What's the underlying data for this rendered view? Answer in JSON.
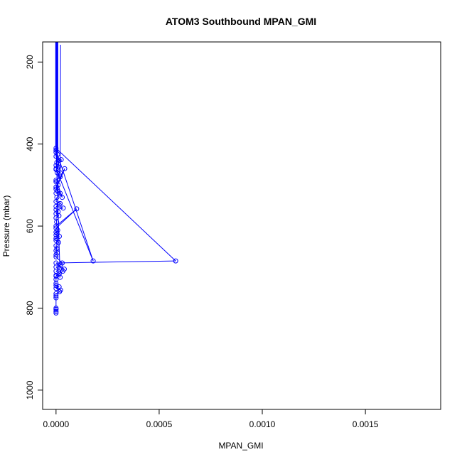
{
  "chart_data": {
    "type": "line",
    "title": "ATOM3 Southbound MPAN_GMI",
    "xlabel": "MPAN_GMI",
    "ylabel": "Pressure (mbar)",
    "xlim": [
      -6.49e-05,
      0.0018649
    ],
    "ylim": [
      1047,
      151
    ],
    "y_reversed": true,
    "x_ticks": [
      0.0,
      0.0005,
      0.001,
      0.0015
    ],
    "x_tick_labels": [
      "0.0000",
      "0.0005",
      "0.0010",
      "0.0015"
    ],
    "y_ticks": [
      200,
      400,
      600,
      800,
      1000
    ],
    "y_tick_labels": [
      "200",
      "400",
      "600",
      "800",
      "1000"
    ],
    "grid": false,
    "legend": "none",
    "series": [
      {
        "color": "#0000ff",
        "marker": "open-circle",
        "line": true,
        "x": [
          0.0,
          8e-06,
          0.0,
          1.5e-05,
          2.5e-05,
          4e-06,
          0.0,
          1.2e-05,
          0.0,
          2e-05,
          0.0,
          0.00018,
          0.0,
          6e-06,
          1.8e-05,
          2e-05,
          0.0,
          0.0,
          1e-05,
          3e-05,
          0.0,
          4.2e-05,
          0.0,
          8e-06,
          0.0,
          2e-05,
          4e-06,
          0.0,
          2e-05,
          1.5e-05,
          0.0,
          3.5e-05,
          0.0,
          1e-05,
          0.0,
          1.4e-05,
          0.0,
          3e-06,
          0.0,
          0.0001,
          0.0,
          8e-06,
          0.0,
          5e-06,
          0.0,
          1.6e-05,
          0.0,
          0.0,
          1.2e-05,
          0.0,
          4e-06,
          0.0,
          6e-06,
          0.0,
          0.0,
          3e-05,
          2.2e-05,
          0.0,
          1.7e-05,
          0.0,
          1.7e-05,
          0.0,
          2e-05,
          0.0,
          0.00058,
          0.0,
          4e-05,
          3.3e-05,
          0.0,
          0.0,
          0.0,
          0.0,
          1.5e-05,
          0.0,
          2.2e-05,
          1.7e-05,
          0.0,
          0.0,
          0.0,
          0.0,
          0.0,
          0.0,
          0.0
        ],
        "y": [
          420,
          425,
          430,
          440,
          438,
          445,
          452,
          456,
          462,
          470,
          415,
          685,
          460,
          470,
          476,
          480,
          488,
          492,
          500,
          530,
          505,
          460,
          510,
          515,
          520,
          520,
          530,
          540,
          545,
          548,
          552,
          556,
          560,
          565,
          570,
          575,
          580,
          590,
          600,
          558,
          605,
          610,
          615,
          618,
          622,
          625,
          630,
          635,
          640,
          648,
          655,
          660,
          665,
          670,
          675,
          690,
          695,
          700,
          705,
          710,
          715,
          720,
          725,
          410,
          685,
          690,
          705,
          710,
          722,
          730,
          740,
          745,
          748,
          752,
          756,
          760,
          765,
          770,
          775,
          800,
          803,
          808,
          812
        ]
      }
    ],
    "top_streak_note": ""
  }
}
